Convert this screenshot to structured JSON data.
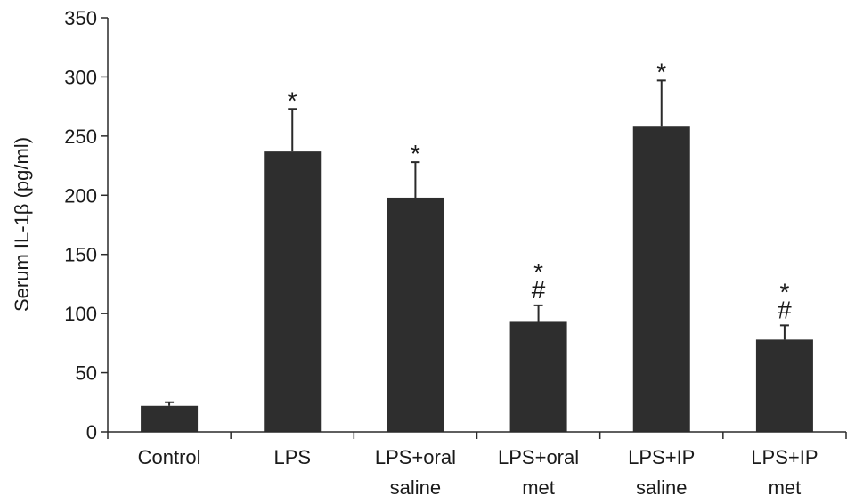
{
  "chart_data": {
    "type": "bar",
    "ylabel": "Serum IL-1β (pg/ml)",
    "xlabel": "",
    "ylim": [
      0,
      350
    ],
    "yticks": [
      0,
      50,
      100,
      150,
      200,
      250,
      300,
      350
    ],
    "bar_color": "#2e2e2e",
    "legend": "none",
    "grid": false,
    "categories": [
      [
        "Control"
      ],
      [
        "LPS"
      ],
      [
        "LPS+oral",
        "saline"
      ],
      [
        "LPS+oral",
        "met"
      ],
      [
        "LPS+IP",
        "saline"
      ],
      [
        "LPS+IP",
        "met"
      ]
    ],
    "values": [
      22,
      237,
      198,
      93,
      258,
      78
    ],
    "errors": [
      3,
      36,
      30,
      14,
      39,
      12
    ],
    "annotations": [
      [],
      [
        "*"
      ],
      [
        "*"
      ],
      [
        "*",
        "#"
      ],
      [
        "*"
      ],
      [
        "*",
        "#"
      ]
    ]
  }
}
